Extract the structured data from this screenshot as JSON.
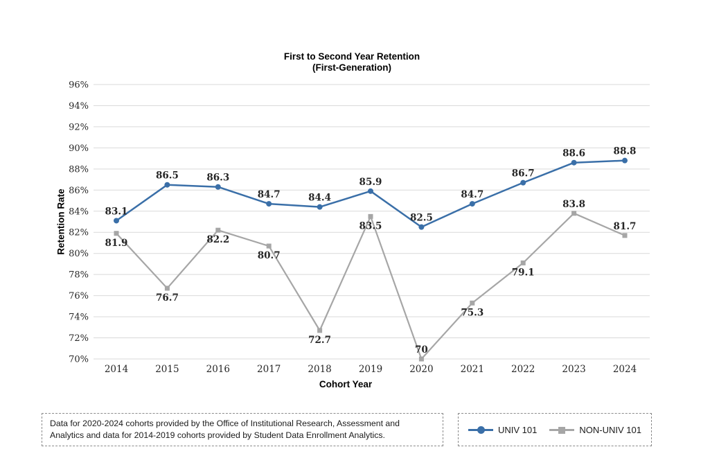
{
  "title": {
    "line1": "First to Second Year Retention",
    "line2": "(First-Generation)"
  },
  "chart_data": {
    "type": "line",
    "categories": [
      "2014",
      "2015",
      "2016",
      "2017",
      "2018",
      "2019",
      "2020",
      "2021",
      "2022",
      "2023",
      "2024"
    ],
    "series": [
      {
        "name": "UNIV 101",
        "color": "#3A6FA8",
        "marker": "circle",
        "values": [
          83.1,
          86.5,
          86.3,
          84.7,
          84.4,
          85.9,
          82.5,
          84.7,
          86.7,
          88.6,
          88.8
        ],
        "label_positions": [
          "above",
          "above",
          "above",
          "above",
          "above",
          "above",
          "above",
          "above",
          "above",
          "above",
          "above"
        ]
      },
      {
        "name": "NON-UNIV 101",
        "color": "#A6A6A6",
        "marker": "square",
        "values": [
          81.9,
          76.7,
          82.2,
          80.7,
          72.7,
          83.5,
          70,
          75.3,
          79.1,
          83.8,
          81.7
        ],
        "label_positions": [
          "below",
          "below",
          "below",
          "below",
          "below",
          "below",
          "above",
          "below",
          "below",
          "above",
          "above"
        ]
      }
    ],
    "title": "First to Second Year Retention (First-Generation)",
    "xlabel": "Cohort Year",
    "ylabel": "Retention Rate",
    "ylim": [
      70,
      96
    ],
    "yticks": [
      70,
      72,
      74,
      76,
      78,
      80,
      82,
      84,
      86,
      88,
      90,
      92,
      94,
      96
    ],
    "ytick_suffix": "%",
    "grid": "horizontal",
    "gridline_color": "#D9D9D9",
    "data_labels": true,
    "legend_position": "bottom-right-box"
  },
  "footer": {
    "lines": [
      "Data for 2020-2024 cohorts provided by the Office of Institutional Research, Assessment and",
      "Analytics and data for 2014-2019 cohorts provided by Student Data Enrollment Analytics."
    ]
  }
}
